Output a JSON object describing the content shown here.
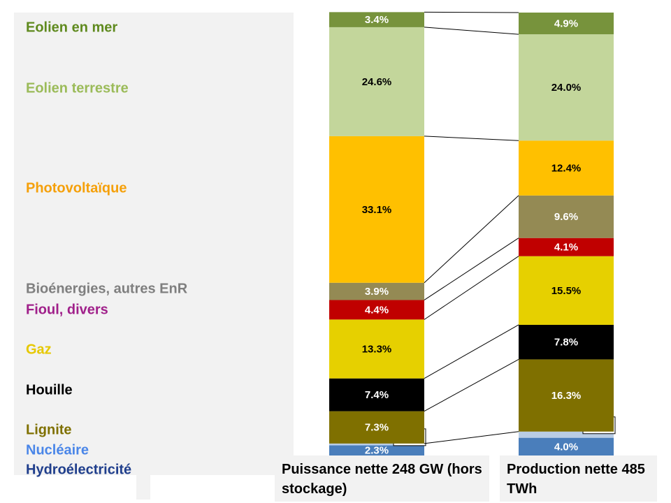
{
  "chart_data": {
    "type": "stacked-bar-100",
    "categories": [
      "Puissance nette 248 GW (hors stockage)",
      "Production nette 485 TWh"
    ],
    "ylim": [
      0,
      100
    ],
    "series": [
      {
        "name": "Hydroélectricité",
        "color": "#4a7ebb",
        "label_color": "#1f3e8c",
        "values": [
          2.3,
          4.0
        ],
        "value_labels": [
          "2.3%",
          "4.0%"
        ]
      },
      {
        "name": "Nucléaire",
        "color": "#b9cde5",
        "label_color": "#4a86e8",
        "values": [
          0.4,
          1.4
        ],
        "value_labels": [
          "0.4%",
          "1.4%"
        ]
      },
      {
        "name": "Lignite",
        "color": "#7f7000",
        "label_color": "#7f7000",
        "values": [
          7.3,
          16.3
        ],
        "value_labels": [
          "7.3%",
          "16.3%"
        ]
      },
      {
        "name": "Houille",
        "color": "#000000",
        "label_color": "#000000",
        "values": [
          7.4,
          7.8
        ],
        "value_labels": [
          "7.4%",
          "7.8%"
        ]
      },
      {
        "name": "Gaz",
        "color": "#e6d000",
        "label_color": "#e6c800",
        "values": [
          13.3,
          15.5
        ],
        "value_labels": [
          "13.3%",
          "15.5%"
        ]
      },
      {
        "name": "Fioul, divers",
        "color": "#c00000",
        "label_color": "#a0208a",
        "values": [
          4.4,
          4.1
        ],
        "value_labels": [
          "4.4%",
          "4.1%"
        ]
      },
      {
        "name": "Bioénergies, autres EnR",
        "color": "#948a54",
        "label_color": "#7f7f7f",
        "values": [
          3.9,
          9.6
        ],
        "value_labels": [
          "3.9%",
          "9.6%"
        ]
      },
      {
        "name": "Photovoltaïque",
        "color": "#ffc000",
        "label_color": "#f5a00a",
        "values": [
          33.1,
          12.4
        ],
        "value_labels": [
          "33.1%",
          "12.4%"
        ]
      },
      {
        "name": "Eolien terrestre",
        "color": "#c3d69b",
        "label_color": "#9bbb59",
        "values": [
          24.6,
          24.0
        ],
        "value_labels": [
          "24.6%",
          "24.0%"
        ]
      },
      {
        "name": "Eolien en mer",
        "color": "#77933c",
        "label_color": "#5f8a1e",
        "values": [
          3.4,
          4.9
        ],
        "value_labels": [
          "3.4%",
          "4.9%"
        ]
      }
    ]
  }
}
